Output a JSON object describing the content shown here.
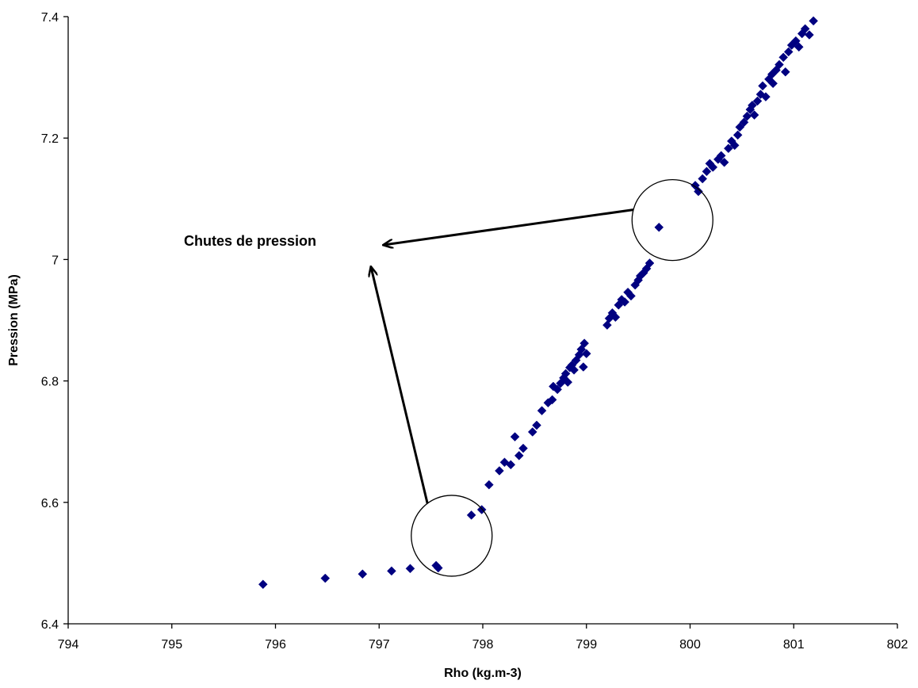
{
  "chart_data": {
    "type": "scatter",
    "title": "",
    "xlabel": "Rho (kg.m-3)",
    "ylabel": "Pression (MPa)",
    "xlim": [
      794,
      802
    ],
    "ylim": [
      6.4,
      7.4
    ],
    "x_ticks": [
      "794",
      "795",
      "796",
      "797",
      "798",
      "799",
      "800",
      "801",
      "802"
    ],
    "y_ticks": [
      "6.4",
      "6.6",
      "6.8",
      "7",
      "7.2",
      "7.4"
    ],
    "grid": false,
    "legend": "none",
    "marker_color": "#000080",
    "marker": "diamond",
    "annotation": {
      "text": "Chutes de pression",
      "highlighted_points": [
        {
          "x": 797.7,
          "y": 6.545
        },
        {
          "x": 799.83,
          "y": 7.065
        }
      ]
    },
    "series": [
      {
        "points": [
          [
            795.88,
            6.465
          ],
          [
            796.48,
            6.475
          ],
          [
            796.84,
            6.482
          ],
          [
            797.12,
            6.487
          ],
          [
            797.3,
            6.491
          ],
          [
            797.55,
            6.496
          ],
          [
            797.57,
            6.492
          ],
          [
            797.89,
            6.579
          ],
          [
            797.99,
            6.588
          ],
          [
            798.06,
            6.629
          ],
          [
            798.16,
            6.652
          ],
          [
            798.21,
            6.666
          ],
          [
            798.27,
            6.662
          ],
          [
            798.31,
            6.708
          ],
          [
            798.35,
            6.677
          ],
          [
            798.39,
            6.689
          ],
          [
            798.48,
            6.716
          ],
          [
            798.52,
            6.727
          ],
          [
            798.57,
            6.751
          ],
          [
            798.63,
            6.764
          ],
          [
            798.67,
            6.769
          ],
          [
            798.68,
            6.791
          ],
          [
            798.72,
            6.786
          ],
          [
            798.75,
            6.796
          ],
          [
            798.78,
            6.805
          ],
          [
            798.8,
            6.812
          ],
          [
            798.82,
            6.798
          ],
          [
            798.84,
            6.822
          ],
          [
            798.86,
            6.826
          ],
          [
            798.88,
            6.818
          ],
          [
            798.9,
            6.834
          ],
          [
            798.93,
            6.843
          ],
          [
            798.95,
            6.852
          ],
          [
            798.97,
            6.823
          ],
          [
            798.98,
            6.862
          ],
          [
            799.0,
            6.845
          ],
          [
            799.2,
            6.892
          ],
          [
            799.22,
            6.903
          ],
          [
            799.25,
            6.912
          ],
          [
            799.28,
            6.905
          ],
          [
            799.31,
            6.925
          ],
          [
            799.34,
            6.934
          ],
          [
            799.37,
            6.93
          ],
          [
            799.4,
            6.946
          ],
          [
            799.43,
            6.94
          ],
          [
            799.47,
            6.958
          ],
          [
            799.5,
            6.966
          ],
          [
            799.52,
            6.973
          ],
          [
            799.55,
            6.978
          ],
          [
            799.58,
            6.985
          ],
          [
            799.61,
            6.994
          ],
          [
            799.7,
            7.053
          ],
          [
            800.05,
            7.122
          ],
          [
            800.08,
            7.112
          ],
          [
            800.12,
            7.133
          ],
          [
            800.16,
            7.145
          ],
          [
            800.19,
            7.158
          ],
          [
            800.22,
            7.152
          ],
          [
            800.27,
            7.165
          ],
          [
            800.3,
            7.171
          ],
          [
            800.33,
            7.16
          ],
          [
            800.37,
            7.183
          ],
          [
            800.4,
            7.195
          ],
          [
            800.43,
            7.188
          ],
          [
            800.46,
            7.205
          ],
          [
            800.48,
            7.218
          ],
          [
            800.52,
            7.226
          ],
          [
            800.55,
            7.236
          ],
          [
            800.58,
            7.247
          ],
          [
            800.6,
            7.254
          ],
          [
            800.62,
            7.238
          ],
          [
            800.65,
            7.261
          ],
          [
            800.68,
            7.272
          ],
          [
            800.7,
            7.286
          ],
          [
            800.73,
            7.268
          ],
          [
            800.76,
            7.297
          ],
          [
            800.79,
            7.305
          ],
          [
            800.8,
            7.29
          ],
          [
            800.83,
            7.312
          ],
          [
            800.86,
            7.321
          ],
          [
            800.9,
            7.333
          ],
          [
            800.92,
            7.309
          ],
          [
            800.95,
            7.342
          ],
          [
            800.98,
            7.353
          ],
          [
            801.02,
            7.36
          ],
          [
            801.05,
            7.35
          ],
          [
            801.08,
            7.372
          ],
          [
            801.11,
            7.38
          ],
          [
            801.15,
            7.37
          ],
          [
            801.19,
            7.393
          ]
        ]
      }
    ]
  }
}
